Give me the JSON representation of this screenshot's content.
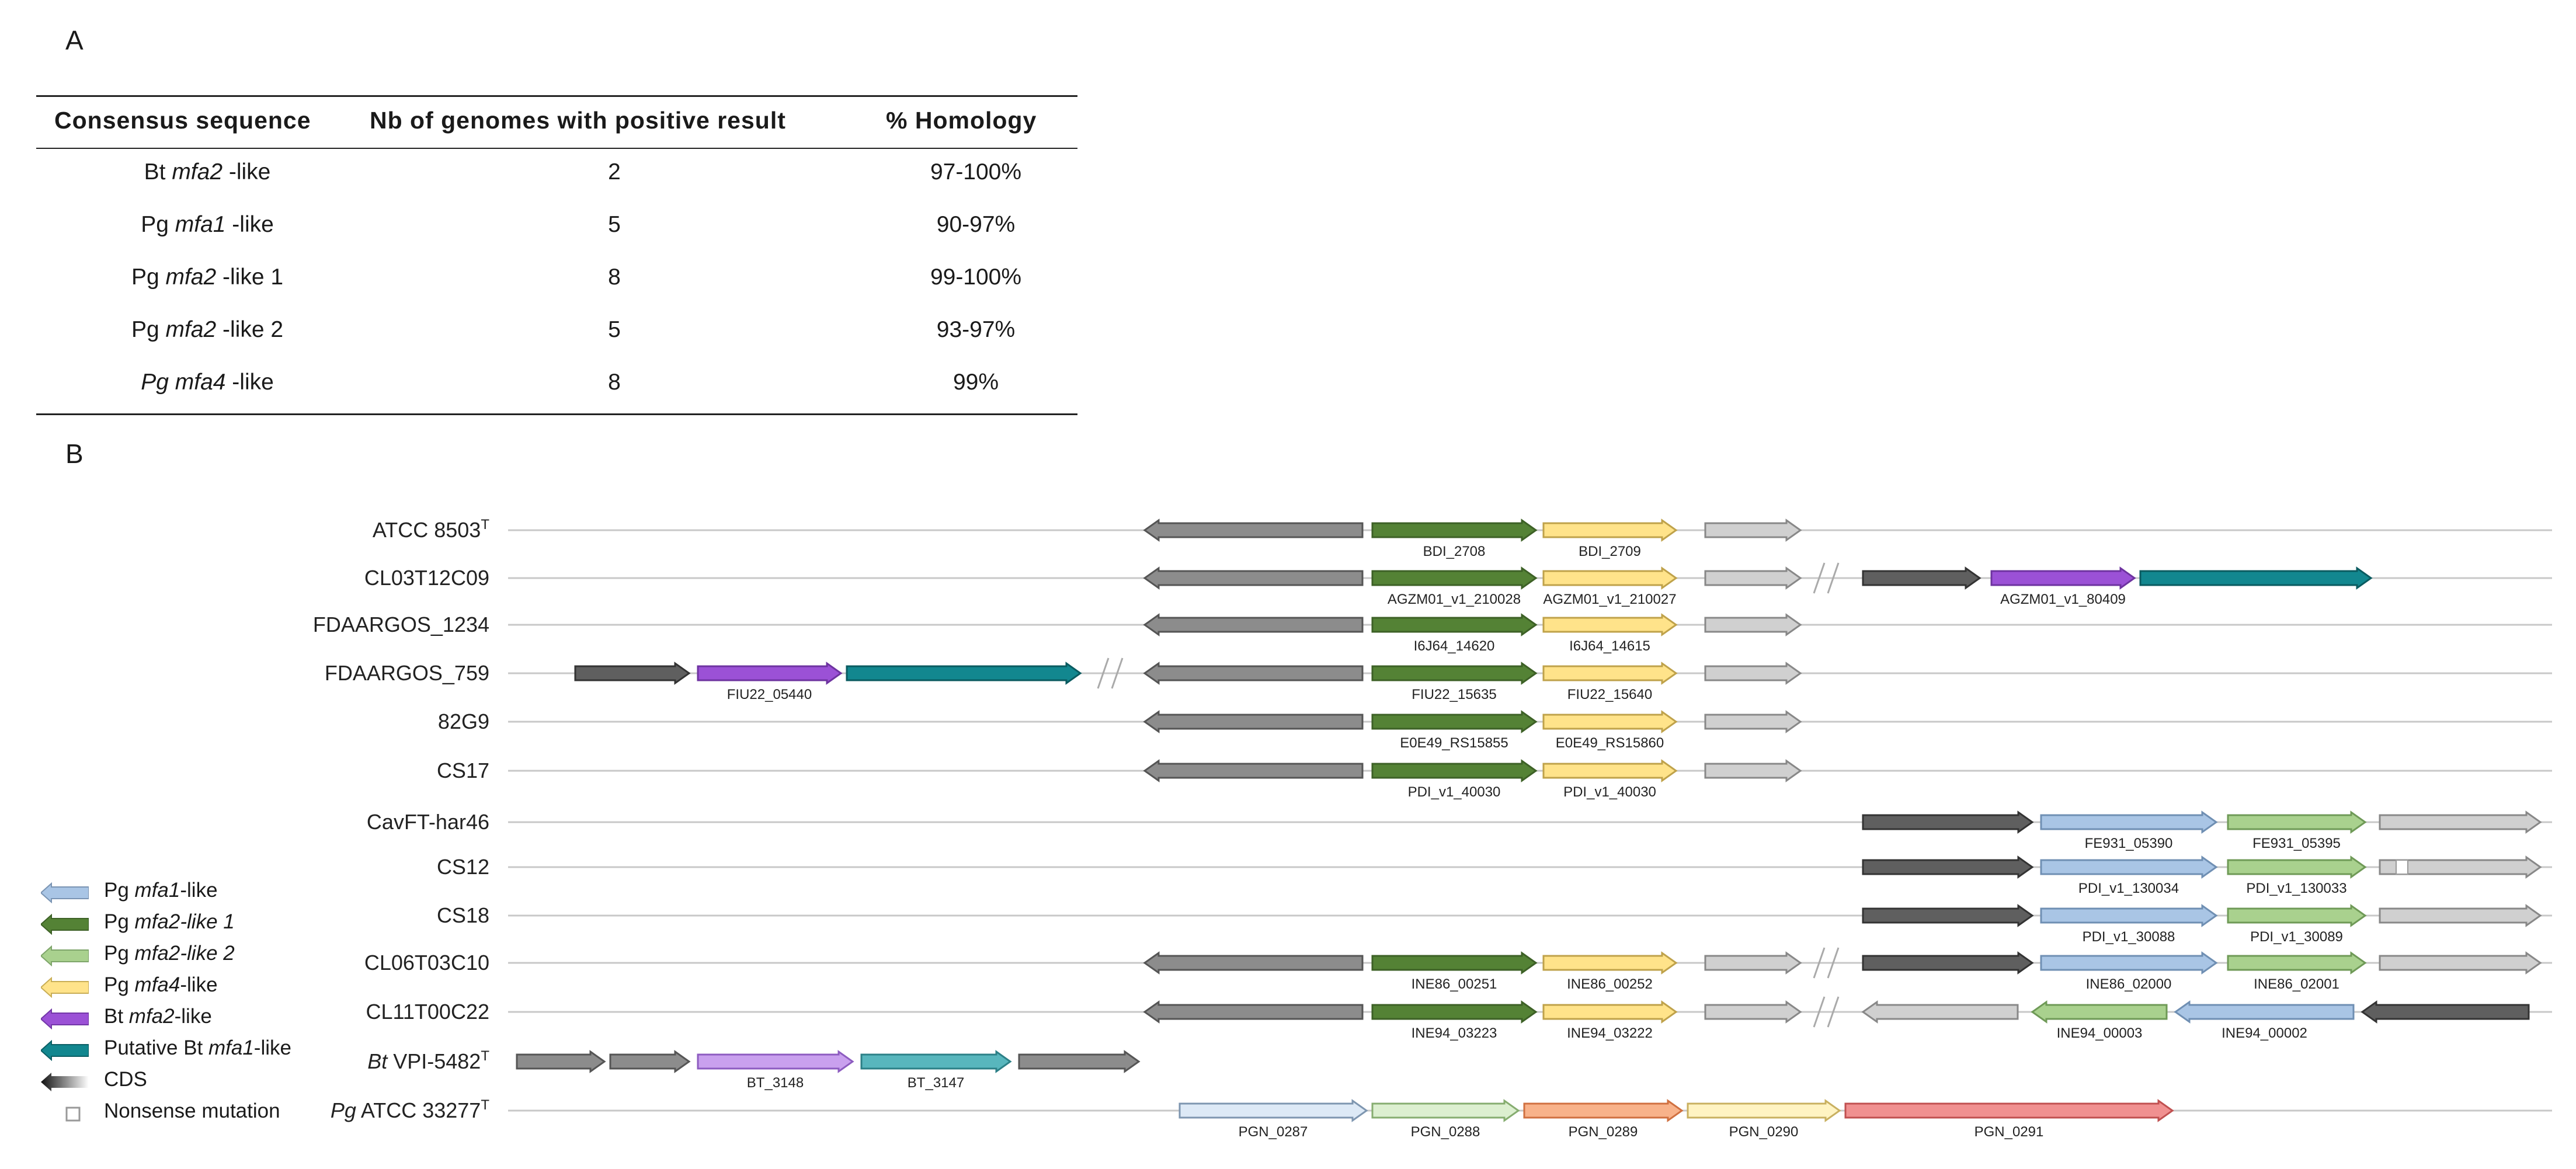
{
  "panels": {
    "a": "A",
    "b": "B"
  },
  "table": {
    "headers": [
      "Consensus sequence",
      "Nb of genomes with positive result",
      "% Homology"
    ],
    "rows": [
      {
        "prefix": "Bt ",
        "gene": "mfa2",
        "suffix": " -like",
        "count": "2",
        "homology": "97-100%"
      },
      {
        "prefix": "Pg ",
        "gene": "mfa1",
        "suffix": " -like",
        "count": "5",
        "homology": "90-97%"
      },
      {
        "prefix": "Pg ",
        "gene": "mfa2",
        "suffix": " -like 1",
        "count": "8",
        "homology": "99-100%"
      },
      {
        "prefix": "Pg ",
        "gene": "mfa2",
        "suffix": " -like 2",
        "count": "5",
        "homology": "93-97%"
      },
      {
        "prefix": "",
        "gene": "Pg mfa4",
        "suffix": " -like",
        "count": "8",
        "homology": "99%"
      }
    ]
  },
  "colors": {
    "pg_mfa1": "#a9c5e5",
    "pg_mfa2_1": "#548235",
    "pg_mfa2_2": "#a9d18e",
    "pg_mfa4": "#ffe38a",
    "bt_mfa2": "#9b51d6",
    "bt_mfa1": "#12878f",
    "cds_light": "#d0d0d0",
    "cds_mid": "#8c8c8c",
    "cds_dark": "#5f5f5f"
  },
  "strains": [
    {
      "id": "s1",
      "name": "ATCC 8503",
      "sup": "T",
      "pre": ""
    },
    {
      "id": "s2",
      "name": "CL03T12C09",
      "sup": "",
      "pre": ""
    },
    {
      "id": "s3",
      "name": "FDAARGOS_1234",
      "sup": "",
      "pre": ""
    },
    {
      "id": "s4",
      "name": "FDAARGOS_759",
      "sup": "",
      "pre": ""
    },
    {
      "id": "s5",
      "name": "82G9",
      "sup": "",
      "pre": ""
    },
    {
      "id": "s6",
      "name": "CS17",
      "sup": "",
      "pre": ""
    },
    {
      "id": "s7",
      "name": "CavFT-har46",
      "sup": "",
      "pre": ""
    },
    {
      "id": "s8",
      "name": "CS12",
      "sup": "",
      "pre": ""
    },
    {
      "id": "s9",
      "name": "CS18",
      "sup": "",
      "pre": ""
    },
    {
      "id": "s10",
      "name": "CL06T03C10",
      "sup": "",
      "pre": ""
    },
    {
      "id": "s11",
      "name": "CL11T00C22",
      "sup": "",
      "pre": ""
    },
    {
      "id": "s12",
      "name": " VPI-5482",
      "sup": "T",
      "pre": "Bt"
    },
    {
      "id": "s13",
      "name": " ATCC 33277",
      "sup": "T",
      "pre": "Pg"
    }
  ],
  "loci": {
    "s1": [
      "BDI_2708",
      "BDI_2709"
    ],
    "s2": [
      "AGZM01_v1_210028",
      "AGZM01_v1_210027",
      "AGZM01_v1_80409"
    ],
    "s3": [
      "I6J64_14620",
      "I6J64_14615"
    ],
    "s4": [
      "FIU22_05440",
      "FIU22_15635",
      "FIU22_15640"
    ],
    "s5": [
      "E0E49_RS15855",
      "E0E49_RS15860"
    ],
    "s6": [
      "PDI_v1_40030",
      "PDI_v1_40030"
    ],
    "s7": [
      "FE931_05390",
      "FE931_05395"
    ],
    "s8": [
      "PDI_v1_130034",
      "PDI_v1_130033"
    ],
    "s9": [
      "PDI_v1_30088",
      "PDI_v1_30089"
    ],
    "s10": [
      "INE86_00251",
      "INE86_00252",
      "INE86_02000",
      "INE86_02001"
    ],
    "s11": [
      "INE94_03223",
      "INE94_03222",
      "INE94_00003",
      "INE94_00002"
    ],
    "s12": [
      "BT_3148",
      "BT_3147"
    ],
    "s13": [
      "PGN_0287",
      "PGN_0288",
      "PGN_0289",
      "PGN_0290",
      "PGN_0291"
    ]
  },
  "legend": [
    {
      "prefix": "Pg ",
      "gene": "mfa1",
      "suffix": "-like"
    },
    {
      "prefix": "Pg ",
      "gene": "mfa2-like 1",
      "suffix": ""
    },
    {
      "prefix": "Pg ",
      "gene": "mfa2-like 2",
      "suffix": ""
    },
    {
      "prefix": "Pg ",
      "gene": "mfa4",
      "suffix": "-like"
    },
    {
      "prefix": "Bt ",
      "gene": "mfa2",
      "suffix": "-like"
    },
    {
      "prefix": "Putative Bt ",
      "gene": "mfa1",
      "suffix": "-like"
    },
    {
      "prefix": "CDS",
      "gene": "",
      "suffix": ""
    },
    {
      "prefix": "Nonsense mutation",
      "gene": "",
      "suffix": ""
    }
  ]
}
